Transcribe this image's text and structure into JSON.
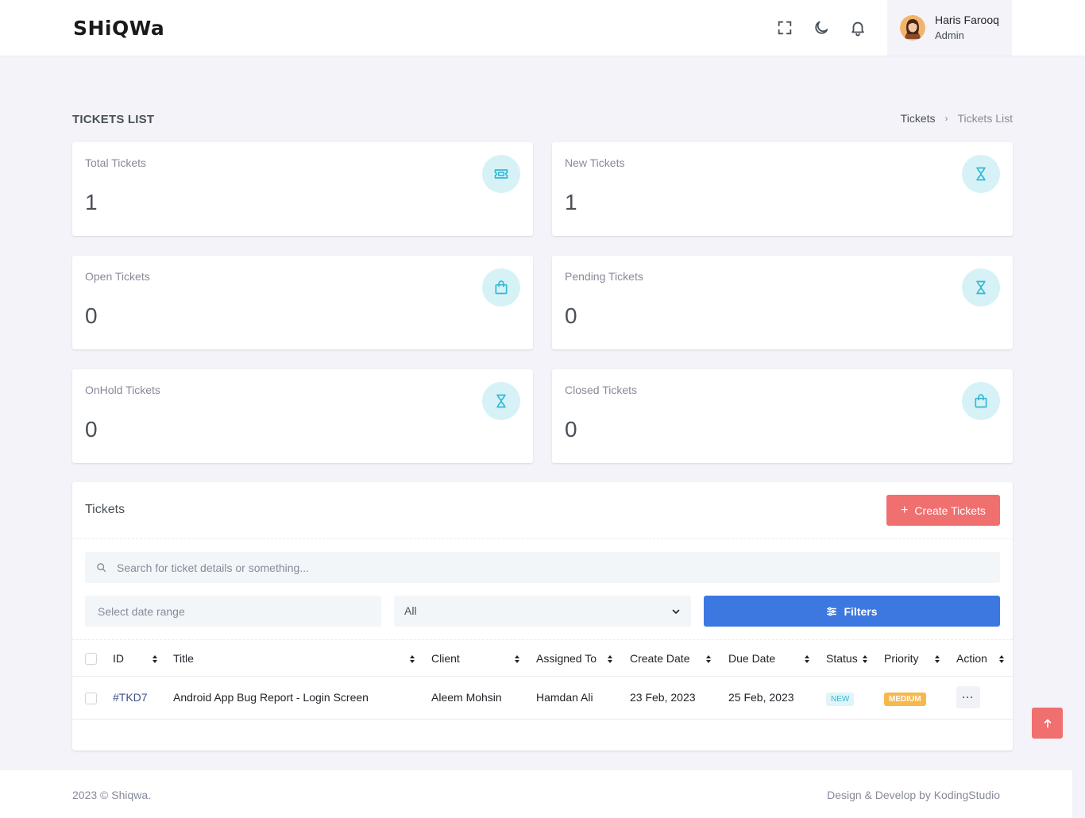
{
  "header": {
    "logo": "SHiQWa",
    "user_name": "Haris Farooq",
    "user_role": "Admin"
  },
  "page": {
    "title": "TICKETS LIST",
    "breadcrumb": [
      "Tickets",
      "Tickets List"
    ]
  },
  "stats": [
    {
      "label": "Total Tickets",
      "value": "1",
      "icon": "ticket-icon"
    },
    {
      "label": "New Tickets",
      "value": "1",
      "icon": "hourglass-icon"
    },
    {
      "label": "Open Tickets",
      "value": "0",
      "icon": "shopping-bag-icon"
    },
    {
      "label": "Pending Tickets",
      "value": "0",
      "icon": "hourglass-icon"
    },
    {
      "label": "OnHold Tickets",
      "value": "0",
      "icon": "hourglass-icon"
    },
    {
      "label": "Closed Tickets",
      "value": "0",
      "icon": "shopping-bag-icon"
    }
  ],
  "tickets": {
    "title": "Tickets",
    "create_label": "Create Tickets",
    "search_placeholder": "Search for ticket details or something...",
    "date_placeholder": "Select date range",
    "status_value": "All",
    "filter_label": "Filters",
    "columns": [
      "ID",
      "Title",
      "Client",
      "Assigned To",
      "Create Date",
      "Due Date",
      "Status",
      "Priority",
      "Action"
    ],
    "rows": [
      {
        "id": "#TKD7",
        "title": "Android App Bug Report - Login Screen",
        "client": "Aleem Mohsin",
        "assigned": "Hamdan Ali",
        "create_date": "23 Feb, 2023",
        "due_date": "25 Feb, 2023",
        "status": "NEW",
        "priority": "MEDIUM",
        "action": "···"
      }
    ]
  },
  "footer": {
    "left": "2023 © Shiqwa.",
    "right": "Design & Develop by KodingStudio"
  },
  "colors": {
    "accent_red": "#f06f6f",
    "accent_blue": "#3c78e0",
    "icon_bg": "#d6f2f7",
    "icon_fg": "#32b8d4"
  }
}
